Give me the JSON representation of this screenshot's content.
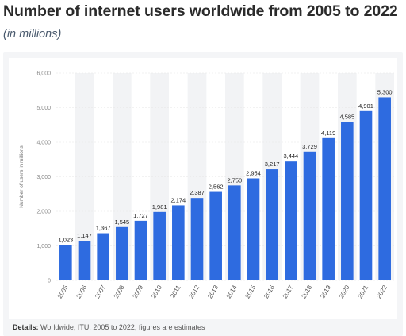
{
  "header": {
    "title": "Number of internet users worldwide from 2005 to 2022",
    "subtitle": "(in millions)"
  },
  "footer": {
    "details_label": "Details:",
    "details_text": "Worldwide; ITU; 2005 to 2022; figures are estimates"
  },
  "colors": {
    "bar": "#2e6be0",
    "band": "#f2f3f5",
    "grid": "#e6e6e6"
  },
  "chart_data": {
    "type": "bar",
    "title": "Number of internet users worldwide from 2005 to 2022",
    "subtitle": "(in millions)",
    "xlabel": "",
    "ylabel": "Number of users in millions",
    "ylim": [
      0,
      6000
    ],
    "yticks": [
      0,
      1000,
      2000,
      3000,
      4000,
      5000,
      6000
    ],
    "ytick_labels": [
      "0",
      "1,000",
      "2,000",
      "3,000",
      "4,000",
      "5,000",
      "6,000"
    ],
    "categories": [
      "2005",
      "2006",
      "2007",
      "2008",
      "2009",
      "2010",
      "2011",
      "2012",
      "2013",
      "2014",
      "2015",
      "2016",
      "2017",
      "2018",
      "2019",
      "2020",
      "2021",
      "2022"
    ],
    "values": [
      1023,
      1147,
      1367,
      1545,
      1727,
      1981,
      2174,
      2387,
      2562,
      2750,
      2954,
      3217,
      3444,
      3729,
      4119,
      4585,
      4901,
      5300
    ],
    "value_labels": [
      "1,023",
      "1,147",
      "1,367",
      "1,545",
      "1,727",
      "1,981",
      "2,174",
      "2,387",
      "2,562",
      "2,750",
      "2,954",
      "3,217",
      "3,444",
      "3,729",
      "4,119",
      "4,585",
      "4,901",
      "5,300"
    ],
    "grid": true,
    "legend": "none"
  }
}
